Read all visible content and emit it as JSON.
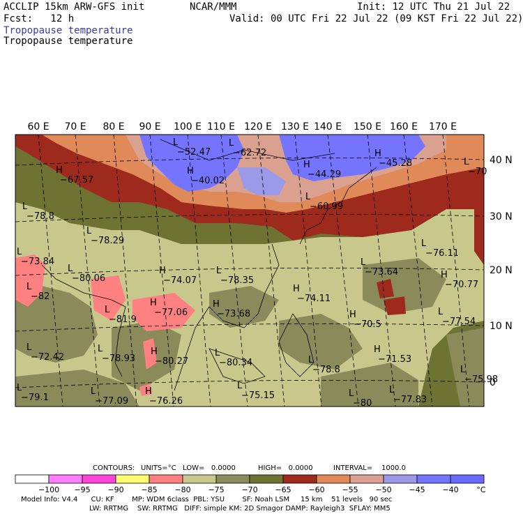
{
  "header": {
    "model": "ACCLIP 15km ARW-GFS init",
    "org": "NCAR/MMM",
    "init": "Init: 12 UTC Thu 21 Jul 22",
    "fcst": "Fcst:   12 h",
    "valid": "Valid: 00 UTC Fri 22 Jul 22 (09 KST Fri 22 Jul 22)",
    "field1": "Tropopause temperature",
    "field2": "Tropopause temperature"
  },
  "map": {
    "lon_labels": [
      "60 E",
      "70 E",
      "80 E",
      "90 E",
      "100 E",
      "110 E",
      "120 E",
      "130 E",
      "140 E",
      "150 E",
      "160 E",
      "170 E"
    ],
    "lat_labels": [
      "40 N",
      "30 N",
      "20 N",
      "10 N",
      "0"
    ],
    "extrema": [
      {
        "t": "L",
        "v": "−52.47"
      },
      {
        "t": "L",
        "v": "−62.72"
      },
      {
        "t": "H",
        "v": "−40.02"
      },
      {
        "t": "H",
        "v": "−44.29"
      },
      {
        "t": "H",
        "v": "−45.28"
      },
      {
        "t": "L",
        "v": "−70"
      },
      {
        "t": "H",
        "v": "−67.57"
      },
      {
        "t": "L",
        "v": "−60.99"
      },
      {
        "t": "L",
        "v": "−78.8"
      },
      {
        "t": "L",
        "v": "−78.29"
      },
      {
        "t": "L",
        "v": "−76.11"
      },
      {
        "t": "L",
        "v": "−73.64"
      },
      {
        "t": "H",
        "v": "−70.77"
      },
      {
        "t": "L",
        "v": "−80.06"
      },
      {
        "t": "H",
        "v": "−74.07"
      },
      {
        "t": "L",
        "v": "−78.35"
      },
      {
        "t": "H",
        "v": "−74.11"
      },
      {
        "t": "L",
        "v": "−82"
      },
      {
        "t": "H",
        "v": "−77.06"
      },
      {
        "t": "H",
        "v": "−73.68"
      },
      {
        "t": "L",
        "v": "−81.9"
      },
      {
        "t": "H",
        "v": "−70.5"
      },
      {
        "t": "L",
        "v": "−77.54"
      },
      {
        "t": "H",
        "v": "−71.53"
      },
      {
        "t": "L",
        "v": "−72.42"
      },
      {
        "t": "L",
        "v": "−78.93"
      },
      {
        "t": "H",
        "v": "−80.27"
      },
      {
        "t": "L",
        "v": "−80.34"
      },
      {
        "t": "L",
        "v": "−78.8"
      },
      {
        "t": "L",
        "v": "−75.98"
      },
      {
        "t": "L",
        "v": "−79.1"
      },
      {
        "t": "L",
        "v": "−77.09"
      },
      {
        "t": "H",
        "v": "−76.26"
      },
      {
        "t": "L",
        "v": "−75.15"
      },
      {
        "t": "L",
        "v": "−77.83"
      },
      {
        "t": "L",
        "v": "−80"
      },
      {
        "t": "L",
        "v": "−73.84"
      }
    ]
  },
  "contours": {
    "label": "CONTOURS:",
    "units": "UNITS=°C",
    "low": "LOW=   0.0000",
    "high": "HIGH=   0.0000",
    "interval": "INTERVAL=    1000.0"
  },
  "colorbar": {
    "colors": [
      "#ffffff",
      "#ff7dff",
      "#ff44d8",
      "#ffff70",
      "#ff8080",
      "#c8c88c",
      "#8a8a5a",
      "#6e7333",
      "#9e2a1e",
      "#e08a5a",
      "#daa090",
      "#9a9ae8",
      "#7474ff",
      "#6a6aff"
    ],
    "labels": [
      "−100",
      "−95",
      "−90",
      "−85",
      "−80",
      "−75",
      "−70",
      "−65",
      "−60",
      "−55",
      "−50",
      "−45",
      "−40"
    ],
    "unit": "°C"
  },
  "footer": {
    "line1": "Model Info: V4.4      CU: KF        MP: WDM 6class  PBL: YSU        SF: Noah LSM     15 km    51 levels   90 sec",
    "line2": "LW: RRTMG    SW: RRTMG   DIFF: simple KM: 2D Smagor DAMP: Rayleigh3  SFLAY: MM5"
  }
}
